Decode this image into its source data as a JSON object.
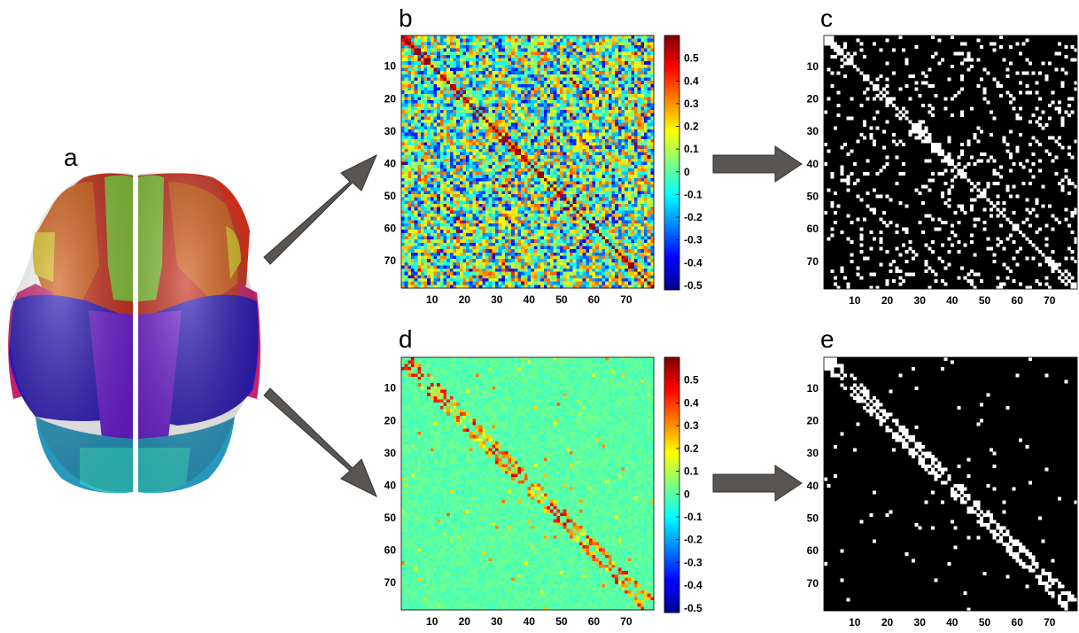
{
  "figure": {
    "panels": {
      "a": {
        "label": "a"
      },
      "b": {
        "label": "b"
      },
      "c": {
        "label": "c"
      },
      "d": {
        "label": "d"
      },
      "e": {
        "label": "e"
      }
    },
    "matrix_axis_ticks": [
      "10",
      "20",
      "30",
      "40",
      "50",
      "60",
      "70"
    ],
    "matrix_axis_tick_values": [
      10,
      20,
      30,
      40,
      50,
      60,
      70
    ],
    "matrix_size": 78,
    "colorbar_ticks": [
      "0.5",
      "0.4",
      "0.3",
      "0.2",
      "0.1",
      "0",
      "-0.1",
      "-0.2",
      "-0.3",
      "-0.4",
      "-0.5"
    ],
    "colorbar_tick_values": [
      0.5,
      0.4,
      0.3,
      0.2,
      0.1,
      0,
      -0.1,
      -0.2,
      -0.3,
      -0.4,
      -0.5
    ],
    "colorbar_range": [
      -0.52,
      0.6
    ],
    "colorbar_colormap": "jet",
    "binary_colors": {
      "background": "#000000",
      "edge": "#ffffff"
    },
    "arrow_color": "#595552",
    "brain_region_colors": [
      "#c0392b",
      "#d35400",
      "#e67e22",
      "#e0c020",
      "#8cc63f",
      "#2e1fb8",
      "#6a1fd1",
      "#d02a6a",
      "#1fa0c0",
      "#30c8c8"
    ]
  }
}
